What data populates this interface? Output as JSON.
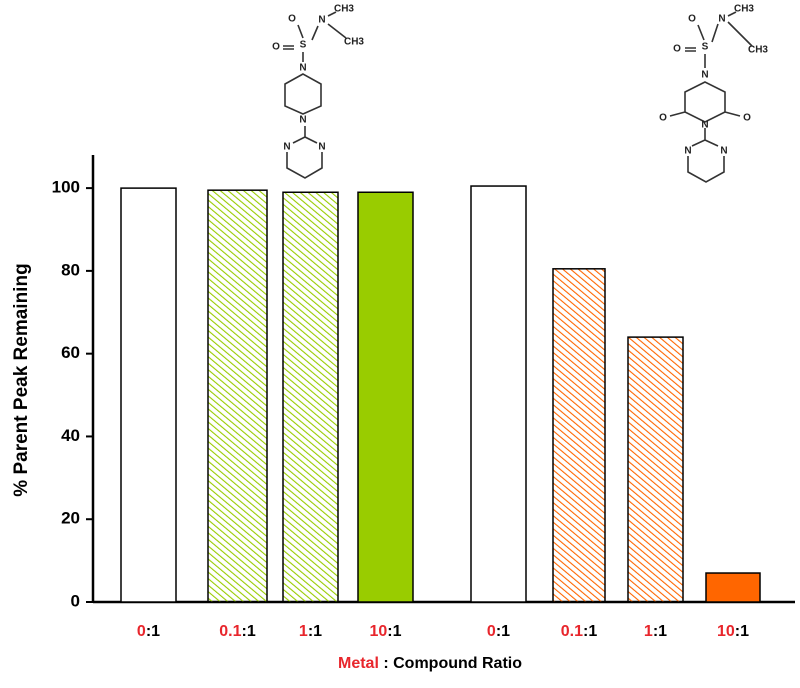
{
  "chart_data": {
    "type": "bar",
    "y_axis_label": "% Parent Peak Remaining",
    "x_axis_label": [
      "Metal",
      " : Compound Ratio"
    ],
    "categories": [
      [
        "0",
        ":1"
      ],
      [
        "0.1",
        ":1"
      ],
      [
        "1",
        ":1"
      ],
      [
        "10",
        ":1"
      ],
      [
        "0",
        ":1"
      ],
      [
        "0.1",
        ":1"
      ],
      [
        "1",
        ":1"
      ],
      [
        "10",
        ":1"
      ]
    ],
    "values": [
      100,
      99.5,
      99,
      99,
      100.5,
      80.5,
      64,
      7
    ],
    "colors": [
      "#ffffff",
      "#99cc00",
      "#99cc00",
      "#99cc00",
      "#ffffff",
      "#ff6600",
      "#ff6600",
      "#ff6600"
    ],
    "hatched": [
      false,
      true,
      true,
      false,
      false,
      true,
      true,
      false
    ],
    "ylim": [
      0,
      108
    ],
    "yticks": [
      0,
      20,
      40,
      60,
      80,
      100
    ],
    "structures": [
      [
        "O",
        "N",
        "CH3",
        "CH3",
        "O",
        "S",
        "N",
        "N",
        "N",
        "N"
      ],
      [
        "O",
        "N",
        "CH3",
        "CH3",
        "O",
        "S",
        "N",
        "O",
        "O",
        "N",
        "N",
        "N"
      ]
    ]
  }
}
